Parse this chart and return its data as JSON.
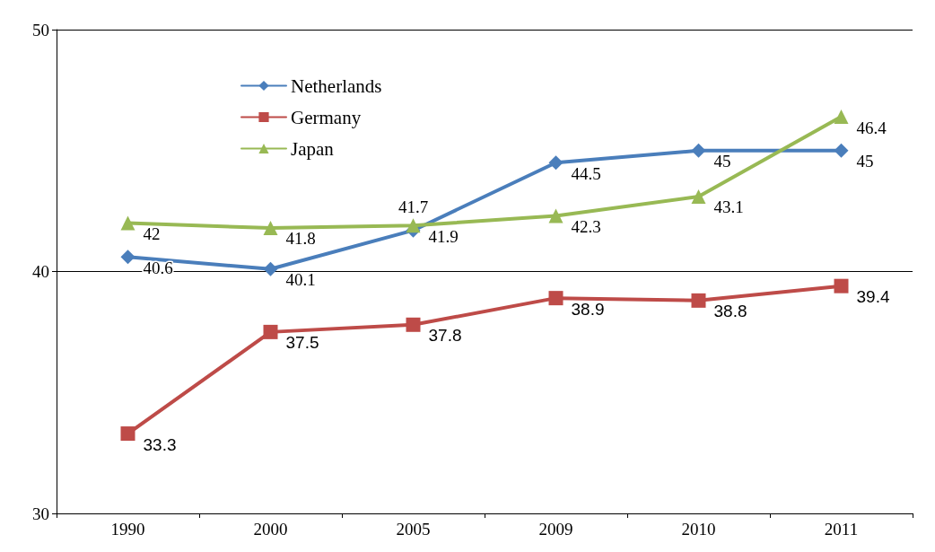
{
  "chart_data": {
    "type": "line",
    "categories": [
      "1990",
      "2000",
      "2005",
      "2009",
      "2010",
      "2011"
    ],
    "ylim": [
      30,
      50
    ],
    "yticks": [
      30,
      40,
      50
    ],
    "grid": "y",
    "legend": "top left",
    "data_labels": true,
    "series": [
      {
        "name": "Netherlands",
        "color": "#4a7ebb",
        "marker": "diamond",
        "values": [
          40.6,
          40.1,
          41.7,
          44.5,
          45,
          45
        ]
      },
      {
        "name": "Germany",
        "color": "#be4b48",
        "marker": "square",
        "values": [
          33.3,
          37.5,
          37.8,
          38.9,
          38.8,
          39.4
        ]
      },
      {
        "name": "Japan",
        "color": "#98b954",
        "marker": "triangle",
        "values": [
          42,
          41.8,
          41.9,
          42.3,
          43.1,
          46.4
        ]
      }
    ]
  }
}
